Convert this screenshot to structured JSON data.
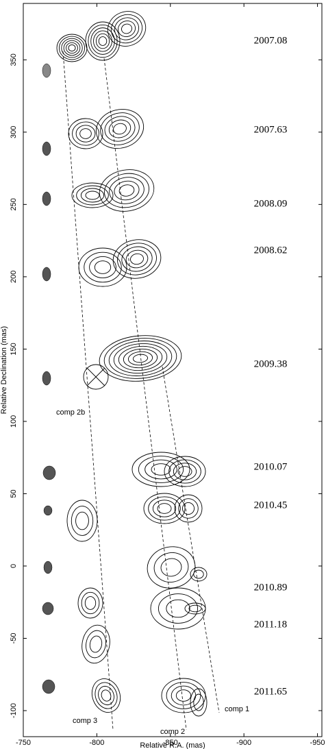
{
  "chart_data": {
    "type": "contour-map",
    "xlabel": "Relative R.A. (mas)",
    "ylabel": "Relative Declination (mas)",
    "xlim": [
      -750,
      -953
    ],
    "xticks": [
      -750,
      -800,
      -850,
      -900,
      -950
    ],
    "ylim": [
      -118,
      389
    ],
    "yticks": [
      -100,
      -50,
      0,
      50,
      100,
      150,
      200,
      250,
      300,
      350
    ],
    "epochs": [
      "2007.08",
      "2007.63",
      "2008.09",
      "2008.62",
      "2009.38",
      "2010.07",
      "2010.45",
      "2010.89",
      "2011.18",
      "2011.65"
    ],
    "annotations": [
      "comp 2b",
      "comp 3",
      "comp 2",
      "comp 1"
    ]
  }
}
